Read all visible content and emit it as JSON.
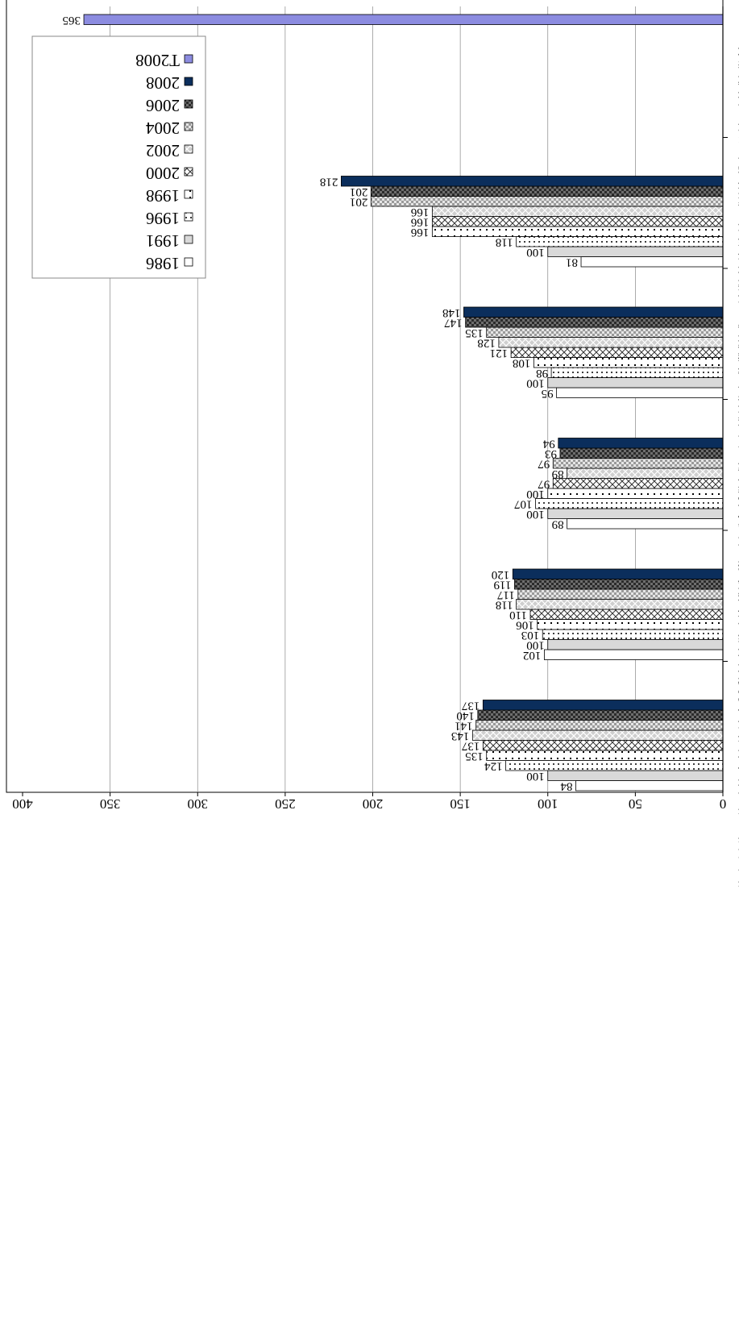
{
  "chart_data": {
    "type": "bar",
    "orientation": "horizontal",
    "rotation": "page rotated 90 degrees counter-clockwise",
    "title": "",
    "xlabel": "",
    "ylabel": "",
    "ylim": [
      0,
      400
    ],
    "yticks": [
      "0",
      "50",
      "100",
      "150",
      "200",
      "250",
      "300",
      "350",
      "400"
    ],
    "grid": true,
    "legend_position": "top-right",
    "categories": [
      {
        "zh": "居住在低收入住戶的女性佔總女性的百分比〔12.4〕〔-〕",
        "en": "% of women in low-income households (12.4) (-)"
      },
      {
        "zh": "已婚女性勞動人口參與率〔42.5〕〔+〕",
        "en": "Married women labour force participation rate (42.5) (+)"
      },
      {
        "zh": "女性中位工資與男性中位工資的比例〔75〕〔+〕",
        "en": "Median women's wages as % of median men's wages, all ages (75) (+)"
      },
      {
        "zh": "女性行政及經理級人員佔該級人員總數的百分比〔20〕〔+〕",
        "en": "% of female administrators and managers (20) (+)"
      },
      {
        "zh": "女性民選區議員佔總民選議席的百分比〔8.8〕〔+〕",
        "en": "% of District Council positions occupied by women (8.8) (+)"
      },
      {
        "zh": "趨勢數據",
        "en": "Trend Score"
      }
    ],
    "series": [
      {
        "name": "1986",
        "values": [
          84,
          102,
          89,
          95,
          81,
          null
        ],
        "pattern": "white",
        "color": "#ffffff"
      },
      {
        "name": "1991",
        "values": [
          100,
          100,
          100,
          100,
          100,
          null
        ],
        "pattern": "lightgray",
        "color": "#d9d9d9"
      },
      {
        "name": "1996",
        "values": [
          124,
          103,
          107,
          98,
          118,
          null
        ],
        "pattern": "dots",
        "color": "#ffffff"
      },
      {
        "name": "1998",
        "values": [
          135,
          106,
          100,
          108,
          166,
          null
        ],
        "pattern": "hline",
        "color": "#ffffff"
      },
      {
        "name": "2000",
        "values": [
          137,
          110,
          97,
          121,
          166,
          null
        ],
        "pattern": "crosshatch",
        "color": "#ffffff"
      },
      {
        "name": "2002",
        "values": [
          143,
          118,
          89,
          128,
          166,
          null
        ],
        "pattern": "crossgray",
        "color": "#d0d0d0"
      },
      {
        "name": "2004",
        "values": [
          141,
          117,
          97,
          135,
          201,
          null
        ],
        "pattern": "checker",
        "color": "#a6a6a6"
      },
      {
        "name": "2006",
        "values": [
          140,
          119,
          93,
          147,
          201,
          null
        ],
        "pattern": "darkcheck",
        "color": "#404040"
      },
      {
        "name": "2008",
        "values": [
          137,
          120,
          94,
          148,
          218,
          null
        ],
        "pattern": "navy",
        "color": "#0b2e5c"
      },
      {
        "name": "T2008",
        "values": [
          null,
          null,
          null,
          null,
          null,
          365
        ],
        "pattern": "lavender",
        "color": "#8c8ce0"
      }
    ]
  }
}
